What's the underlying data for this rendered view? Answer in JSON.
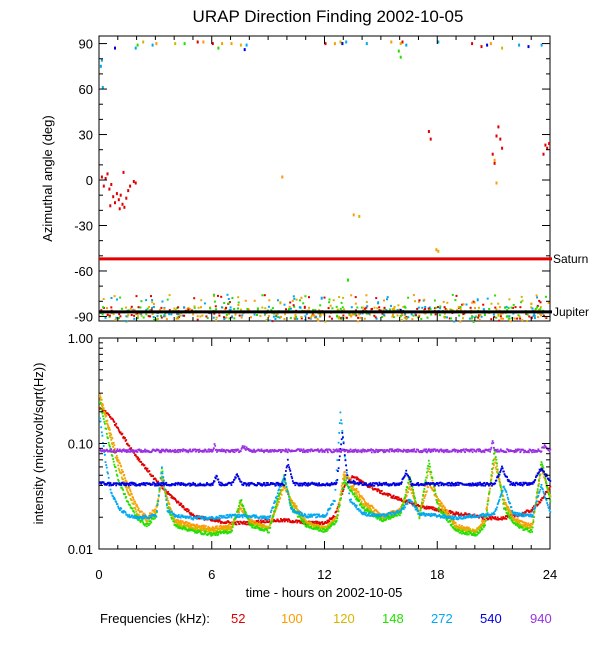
{
  "title": "URAP Direction Finding  2002-10-05",
  "xlabel": "time - hours on 2002-10-05",
  "frequencies_label": "Frequencies (kHz):",
  "colors": {
    "52": "#e00000",
    "100": "#ff9a00",
    "120": "#d8b400",
    "148": "#22e000",
    "272": "#00a8f0",
    "540": "#0000e0",
    "940": "#9a30e0",
    "saturn": "#e00000",
    "jupiter": "#000000"
  },
  "chart_data": [
    {
      "type": "scatter",
      "title": "URAP Direction Finding  2002-10-05",
      "xlabel": "",
      "ylabel": "Azimuthal angle (deg)",
      "xlim": [
        0,
        24
      ],
      "ylim": [
        -93,
        95
      ],
      "xticks": [
        0,
        6,
        12,
        18,
        24
      ],
      "yticks": [
        90,
        60,
        30,
        0,
        -30,
        -60,
        -90
      ],
      "grid": false,
      "reference_lines": [
        {
          "name": "Saturn",
          "y": -52
        },
        {
          "name": "Jupiter",
          "y": -87
        }
      ],
      "series": [
        {
          "freq": "52",
          "points": [
            [
              0.1,
              3
            ],
            [
              0.2,
              -3
            ],
            [
              0.3,
              2
            ],
            [
              0.4,
              5
            ],
            [
              0.5,
              -5
            ],
            [
              0.6,
              -2
            ],
            [
              0.7,
              -10
            ],
            [
              0.8,
              -14
            ],
            [
              0.9,
              -8
            ],
            [
              1.0,
              -12
            ],
            [
              1.1,
              -9
            ],
            [
              1.2,
              -15
            ],
            [
              1.3,
              -17
            ],
            [
              1.4,
              -11
            ],
            [
              1.5,
              -6
            ],
            [
              1.6,
              -3
            ],
            [
              1.8,
              0
            ],
            [
              1.9,
              -1
            ],
            [
              0.55,
              -16
            ],
            [
              1.05,
              -18
            ],
            [
              1.25,
              6
            ],
            [
              17.5,
              33
            ],
            [
              17.6,
              28
            ],
            [
              21.1,
              30
            ],
            [
              21.2,
              36
            ],
            [
              21.3,
              28
            ],
            [
              21.4,
              22
            ],
            [
              21.0,
              12
            ],
            [
              20.9,
              18
            ],
            [
              23.6,
              18
            ],
            [
              23.7,
              24
            ],
            [
              23.8,
              22
            ],
            [
              23.9,
              25
            ],
            [
              5.2,
              92
            ],
            [
              6.0,
              91
            ],
            [
              12.0,
              91
            ],
            [
              16.1,
              92
            ],
            [
              19.8,
              91
            ],
            [
              20.3,
              89
            ],
            [
              10.9,
              -83
            ],
            [
              11.7,
              -86
            ]
          ]
        },
        {
          "freq": "100",
          "points": [
            [
              3.0,
              91
            ],
            [
              5.5,
              92
            ],
            [
              7.0,
              91
            ],
            [
              12.5,
              91
            ],
            [
              15.5,
              92
            ],
            [
              20.8,
              91
            ],
            [
              21.0,
              14
            ],
            [
              21.1,
              -1
            ],
            [
              17.9,
              -45
            ],
            [
              13.5,
              -22
            ],
            [
              9.7,
              3
            ],
            [
              6.5,
              91
            ],
            [
              11.9,
              -87
            ],
            [
              20.5,
              -86
            ]
          ]
        },
        {
          "freq": "120",
          "points": [
            [
              2.3,
              92
            ],
            [
              4.0,
              91
            ],
            [
              7.5,
              90
            ],
            [
              12.8,
              92
            ],
            [
              16.0,
              91
            ],
            [
              21.4,
              88
            ],
            [
              18.0,
              -46
            ],
            [
              13.8,
              -23
            ],
            [
              11.6,
              -86
            ],
            [
              9.6,
              -80
            ]
          ]
        },
        {
          "freq": "148",
          "points": [
            [
              2.0,
              90
            ],
            [
              4.5,
              91
            ],
            [
              6.3,
              88
            ],
            [
              12.9,
              91
            ],
            [
              15.9,
              86
            ],
            [
              16.0,
              82
            ],
            [
              13.2,
              -65
            ],
            [
              5.1,
              -86
            ],
            [
              8.4,
              -84
            ]
          ]
        },
        {
          "freq": "272",
          "points": [
            [
              0.1,
              80
            ],
            [
              0.05,
              76
            ],
            [
              0.15,
              62
            ],
            [
              1.9,
              88
            ],
            [
              2.8,
              90
            ],
            [
              7.8,
              90
            ],
            [
              13.1,
              92
            ],
            [
              14.2,
              91
            ],
            [
              16.3,
              90
            ],
            [
              18.0,
              92
            ],
            [
              22.3,
              90
            ],
            [
              23.5,
              90
            ],
            [
              11.8,
              -77
            ],
            [
              14.8,
              -80
            ],
            [
              20.1,
              -78
            ]
          ]
        },
        {
          "freq": "540",
          "points": [
            [
              0.8,
              88
            ],
            [
              7.7,
              87
            ],
            [
              12.9,
              91
            ],
            [
              20.6,
              90
            ],
            [
              22.8,
              89
            ],
            [
              15.6,
              -86
            ],
            [
              16.0,
              -85
            ]
          ]
        }
      ],
      "band": {
        "x": [
          0,
          24
        ],
        "y": [
          -93,
          -75
        ],
        "freqs": [
          "148",
          "120",
          "272",
          "100",
          "52"
        ]
      }
    },
    {
      "type": "line",
      "xlabel": "time - hours on 2002-10-05",
      "ylabel": "intensity (microvolt/sqrt(Hz))",
      "xlim": [
        0,
        24
      ],
      "ylim": [
        0.01,
        1.0
      ],
      "yscale": "log",
      "xticks": [
        0,
        6,
        12,
        18,
        24
      ],
      "yticks": [
        1.0,
        0.1,
        0.01
      ],
      "ytick_labels": [
        "1.00",
        "0.10",
        "0.01"
      ],
      "grid": false,
      "series": [
        {
          "freq": "52",
          "x": [
            0,
            0.5,
            1,
            1.5,
            2,
            2.5,
            3,
            3.5,
            4,
            4.5,
            5,
            6,
            7,
            8,
            9,
            10,
            11,
            12,
            12.5,
            13,
            13.5,
            14,
            15,
            16,
            17,
            18,
            19,
            20,
            20.5,
            21,
            21.5,
            22,
            22.5,
            23,
            23.5,
            24
          ],
          "y": [
            0.22,
            0.19,
            0.14,
            0.1,
            0.075,
            0.058,
            0.045,
            0.036,
            0.03,
            0.025,
            0.021,
            0.019,
            0.018,
            0.018,
            0.019,
            0.019,
            0.018,
            0.018,
            0.021,
            0.04,
            0.05,
            0.043,
            0.035,
            0.03,
            0.026,
            0.024,
            0.022,
            0.021,
            0.02,
            0.02,
            0.02,
            0.021,
            0.022,
            0.024,
            0.03,
            0.04
          ]
        },
        {
          "freq": "100",
          "x": [
            0,
            0.5,
            1,
            1.5,
            2,
            2.5,
            3,
            3.3,
            3.6,
            4,
            5,
            6,
            7,
            7.5,
            8,
            9,
            9.8,
            10.2,
            11,
            12,
            12.6,
            13,
            14,
            15,
            16,
            16.5,
            17,
            17.5,
            18,
            19,
            20,
            20.5,
            21,
            21.5,
            22,
            22.5,
            23,
            23.5,
            24
          ],
          "y": [
            0.3,
            0.14,
            0.07,
            0.04,
            0.025,
            0.02,
            0.025,
            0.045,
            0.03,
            0.019,
            0.017,
            0.016,
            0.017,
            0.025,
            0.019,
            0.016,
            0.04,
            0.03,
            0.018,
            0.016,
            0.02,
            0.055,
            0.03,
            0.021,
            0.024,
            0.04,
            0.022,
            0.042,
            0.03,
            0.017,
            0.015,
            0.02,
            0.07,
            0.03,
            0.02,
            0.018,
            0.017,
            0.06,
            0.03
          ]
        },
        {
          "freq": "120",
          "x": [
            0,
            0.5,
            1,
            1.5,
            2,
            2.5,
            3,
            3.3,
            3.6,
            4,
            5,
            6,
            7,
            7.5,
            8,
            9,
            9.8,
            10.2,
            11,
            12,
            12.6,
            13,
            14,
            15,
            16,
            16.5,
            17,
            17.5,
            18,
            19,
            20,
            20.5,
            21,
            21.5,
            22,
            22.5,
            23,
            23.5,
            24
          ],
          "y": [
            0.28,
            0.13,
            0.06,
            0.035,
            0.022,
            0.019,
            0.023,
            0.05,
            0.028,
            0.018,
            0.016,
            0.015,
            0.016,
            0.028,
            0.018,
            0.016,
            0.045,
            0.028,
            0.018,
            0.016,
            0.02,
            0.05,
            0.027,
            0.02,
            0.023,
            0.045,
            0.021,
            0.06,
            0.028,
            0.016,
            0.015,
            0.018,
            0.08,
            0.028,
            0.019,
            0.017,
            0.016,
            0.065,
            0.03
          ]
        },
        {
          "freq": "148",
          "x": [
            0,
            0.5,
            1,
            1.5,
            2,
            2.5,
            3,
            3.3,
            3.6,
            4,
            5,
            6,
            7,
            7.5,
            8,
            9,
            9.8,
            10.2,
            11,
            12,
            12.6,
            13,
            14,
            15,
            16,
            16.5,
            17,
            17.5,
            18,
            19,
            20,
            20.5,
            21,
            21.5,
            22,
            22.5,
            23,
            23.5,
            24
          ],
          "y": [
            0.25,
            0.1,
            0.045,
            0.028,
            0.02,
            0.017,
            0.021,
            0.06,
            0.025,
            0.017,
            0.015,
            0.014,
            0.015,
            0.03,
            0.017,
            0.015,
            0.05,
            0.025,
            0.017,
            0.015,
            0.019,
            0.045,
            0.025,
            0.019,
            0.022,
            0.05,
            0.02,
            0.07,
            0.025,
            0.015,
            0.014,
            0.017,
            0.09,
            0.025,
            0.018,
            0.016,
            0.015,
            0.07,
            0.028
          ]
        },
        {
          "freq": "272",
          "x": [
            0,
            0.3,
            0.6,
            1,
            1.5,
            2,
            3,
            3.3,
            3.6,
            4,
            5,
            6,
            7,
            8,
            9,
            9.8,
            10.2,
            11,
            12,
            12.5,
            12.8,
            13,
            13.3,
            14,
            15,
            16,
            16.5,
            17,
            18,
            19,
            20,
            21,
            21.5,
            22,
            23,
            23.5,
            24
          ],
          "y": [
            0.18,
            0.07,
            0.035,
            0.025,
            0.021,
            0.02,
            0.021,
            0.06,
            0.024,
            0.021,
            0.02,
            0.02,
            0.021,
            0.021,
            0.02,
            0.05,
            0.024,
            0.021,
            0.021,
            0.03,
            0.2,
            0.09,
            0.03,
            0.022,
            0.021,
            0.023,
            0.03,
            0.022,
            0.021,
            0.02,
            0.021,
            0.022,
            0.04,
            0.022,
            0.021,
            0.04,
            0.022
          ]
        },
        {
          "freq": "540",
          "x": [
            0,
            0.5,
            1,
            2,
            3,
            4,
            5,
            6,
            6.2,
            6.4,
            7,
            7.3,
            7.6,
            8,
            9,
            9.8,
            10,
            10.3,
            11,
            12,
            12.6,
            12.9,
            13.2,
            14,
            15,
            16,
            16.3,
            16.6,
            17,
            18,
            19,
            20,
            21,
            21.4,
            21.8,
            22,
            23,
            23.5,
            24
          ],
          "y": [
            0.043,
            0.042,
            0.042,
            0.042,
            0.042,
            0.042,
            0.042,
            0.042,
            0.05,
            0.042,
            0.042,
            0.052,
            0.042,
            0.042,
            0.042,
            0.042,
            0.07,
            0.042,
            0.042,
            0.042,
            0.042,
            0.13,
            0.045,
            0.042,
            0.042,
            0.042,
            0.055,
            0.042,
            0.042,
            0.042,
            0.042,
            0.042,
            0.042,
            0.06,
            0.043,
            0.042,
            0.042,
            0.06,
            0.043
          ]
        },
        {
          "freq": "940",
          "x": [
            0,
            1,
            2,
            3,
            4,
            5,
            6,
            6.1,
            6.2,
            7,
            7.5,
            7.6,
            8,
            9,
            10,
            11,
            12,
            13,
            14,
            15,
            16,
            17,
            18,
            19,
            20,
            20.8,
            20.9,
            21,
            22,
            23,
            23.5,
            23.6,
            24
          ],
          "y": [
            0.088,
            0.087,
            0.087,
            0.087,
            0.087,
            0.087,
            0.087,
            0.098,
            0.087,
            0.087,
            0.087,
            0.095,
            0.087,
            0.087,
            0.087,
            0.087,
            0.087,
            0.087,
            0.087,
            0.087,
            0.087,
            0.087,
            0.087,
            0.087,
            0.087,
            0.087,
            0.11,
            0.087,
            0.087,
            0.087,
            0.087,
            0.097,
            0.087
          ]
        }
      ]
    }
  ],
  "legend": [
    {
      "freq": "52",
      "label": "52"
    },
    {
      "freq": "100",
      "label": "100"
    },
    {
      "freq": "120",
      "label": "120"
    },
    {
      "freq": "148",
      "label": "148"
    },
    {
      "freq": "272",
      "label": "272"
    },
    {
      "freq": "540",
      "label": "540"
    },
    {
      "freq": "940",
      "label": "940"
    }
  ]
}
